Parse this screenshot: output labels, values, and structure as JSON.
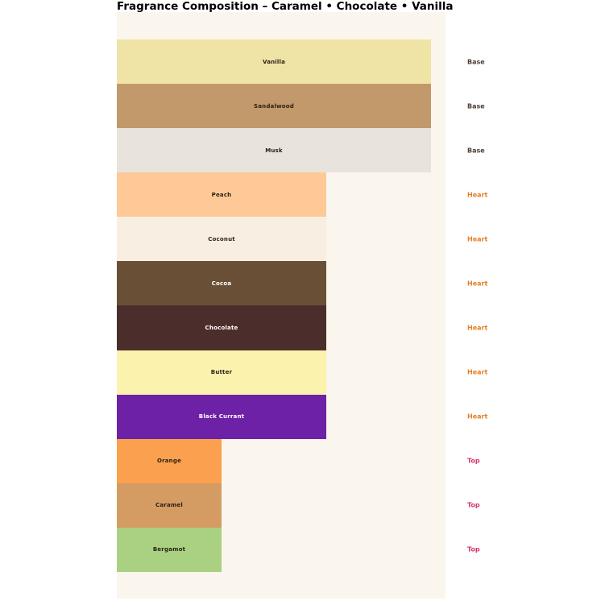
{
  "title": "Fragrance Composition – Caramel • Chocolate • Vanilla",
  "colors": {
    "page_background": "#ffffff",
    "panel_background": "#faf6ee",
    "title_text": "#000000",
    "note_label_base": "#4e3d33",
    "note_label_heart": "#e67e22",
    "note_label_top": "#d6336c"
  },
  "chart_data": {
    "type": "bar",
    "orientation": "horizontal",
    "title": "Fragrance Composition – Caramel • Chocolate • Vanilla",
    "xlabel": "",
    "ylabel": "",
    "xlim": [
      0,
      3.15
    ],
    "grid": false,
    "legend_position": "none",
    "axes_visible": false,
    "value_semantics": "relative note strength: Base=3, Heart=2, Top=1",
    "categories": [
      "Vanilla",
      "Sandalwood",
      "Musk",
      "Peach",
      "Coconut",
      "Cocoa",
      "Chocolate",
      "Butter",
      "Black Currant",
      "Orange",
      "Caramel",
      "Bergamot"
    ],
    "values": [
      3,
      3,
      3,
      2,
      2,
      2,
      2,
      2,
      2,
      1,
      1,
      1
    ],
    "note_types": [
      "Base",
      "Base",
      "Base",
      "Heart",
      "Heart",
      "Heart",
      "Heart",
      "Heart",
      "Heart",
      "Top",
      "Top",
      "Top"
    ],
    "bars": [
      {
        "label": "Vanilla",
        "note": "Base",
        "value": 3,
        "color": "#f0e3a6",
        "label_color": "#2a1f14",
        "note_color": "#4e3d33"
      },
      {
        "label": "Sandalwood",
        "note": "Base",
        "value": 3,
        "color": "#c1996a",
        "label_color": "#2a1f14",
        "note_color": "#4e3d33"
      },
      {
        "label": "Musk",
        "note": "Base",
        "value": 3,
        "color": "#e8e4dd",
        "label_color": "#2a1f14",
        "note_color": "#4e3d33"
      },
      {
        "label": "Peach",
        "note": "Heart",
        "value": 2,
        "color": "#fec996",
        "label_color": "#2a1f14",
        "note_color": "#e67e22"
      },
      {
        "label": "Coconut",
        "note": "Heart",
        "value": 2,
        "color": "#f8efe2",
        "label_color": "#2a1f14",
        "note_color": "#e67e22"
      },
      {
        "label": "Cocoa",
        "note": "Heart",
        "value": 2,
        "color": "#6a4f37",
        "label_color": "#ffffff",
        "note_color": "#e67e22"
      },
      {
        "label": "Chocolate",
        "note": "Heart",
        "value": 2,
        "color": "#4b2e2b",
        "label_color": "#ffffff",
        "note_color": "#e67e22"
      },
      {
        "label": "Butter",
        "note": "Heart",
        "value": 2,
        "color": "#fbf2ae",
        "label_color": "#2a1f14",
        "note_color": "#e67e22"
      },
      {
        "label": "Black Currant",
        "note": "Heart",
        "value": 2,
        "color": "#6d21a6",
        "label_color": "#ffffff",
        "note_color": "#e67e22"
      },
      {
        "label": "Orange",
        "note": "Top",
        "value": 1,
        "color": "#fba04e",
        "label_color": "#2a1f14",
        "note_color": "#d6336c"
      },
      {
        "label": "Caramel",
        "note": "Top",
        "value": 1,
        "color": "#d49c63",
        "label_color": "#2a1f14",
        "note_color": "#d6336c"
      },
      {
        "label": "Bergamot",
        "note": "Top",
        "value": 1,
        "color": "#a9d181",
        "label_color": "#2a1f14",
        "note_color": "#d6336c"
      }
    ]
  }
}
